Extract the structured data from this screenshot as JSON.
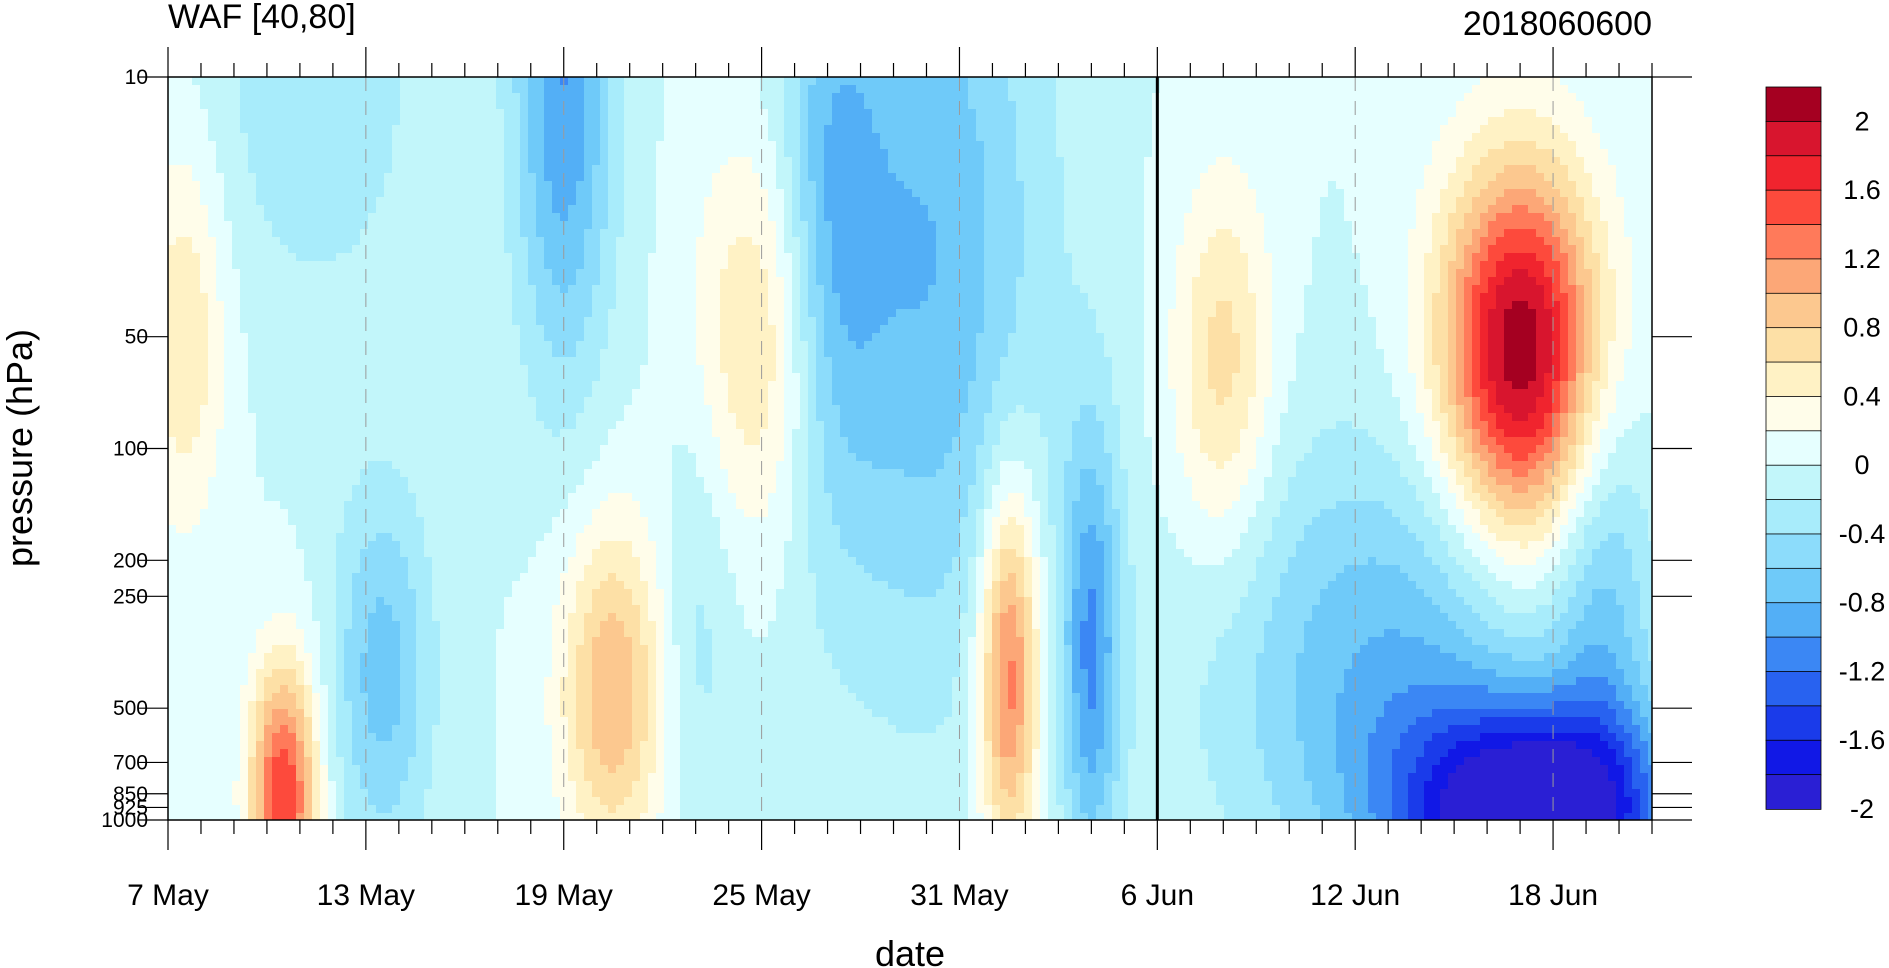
{
  "chart_data": {
    "type": "heatmap",
    "title": "WAF [40,80]",
    "subtitle": "2018060600",
    "xlabel": "date",
    "ylabel": "pressure (hPa)",
    "x_ticks": [
      "7 May",
      "13 May",
      "19 May",
      "25 May",
      "31 May",
      "6 Jun",
      "12 Jun",
      "18 Jun"
    ],
    "y_ticks": [
      "10",
      "50",
      "100",
      "200",
      "250",
      "500",
      "700",
      "850",
      "925",
      "1000"
    ],
    "y_tick_values": [
      10,
      50,
      100,
      200,
      250,
      500,
      700,
      850,
      925,
      1000
    ],
    "y_scale": "log",
    "marker_date": "6 Jun",
    "colorbar": {
      "labels": [
        "2",
        "1.6",
        "1.2",
        "0.8",
        "0.4",
        "0",
        "-0.4",
        "-0.8",
        "-1.2",
        "-1.6",
        "-2"
      ],
      "levels": [
        2.2,
        2.0,
        1.8,
        1.6,
        1.4,
        1.2,
        1.0,
        0.8,
        0.6,
        0.4,
        0.2,
        0.0,
        -0.2,
        -0.4,
        -0.6,
        -0.8,
        -1.0,
        -1.2,
        -1.4,
        -1.6,
        -1.8,
        -2.0,
        -2.2
      ],
      "colors": [
        "#a50021",
        "#d8152e",
        "#f0242e",
        "#fd4a3c",
        "#ff7a5a",
        "#fca777",
        "#fcc88f",
        "#fde0a6",
        "#fff2c5",
        "#fffdea",
        "#e6ffff",
        "#c2f6fa",
        "#a8ecfb",
        "#8cdcfb",
        "#6fcaf9",
        "#53aff6",
        "#3b87f4",
        "#2862f0",
        "#1a3bea",
        "#1118e6",
        "#2a1fd4"
      ]
    },
    "features": [
      {
        "day": 3.5,
        "p": 850,
        "value": 1.6,
        "sx": 1.0,
        "sy": 0.35
      },
      {
        "day": 0.5,
        "p": 50,
        "value": 0.6,
        "sx": 1.2,
        "sy": 0.5
      },
      {
        "day": 4.5,
        "p": 10,
        "value": -0.4,
        "sx": 3.0,
        "sy": 0.6
      },
      {
        "day": 6.5,
        "p": 400,
        "value": -0.7,
        "sx": 1.5,
        "sy": 0.5
      },
      {
        "day": 12.0,
        "p": 10,
        "value": -1.0,
        "sx": 1.5,
        "sy": 0.8
      },
      {
        "day": 13.5,
        "p": 450,
        "value": 1.0,
        "sx": 1.6,
        "sy": 0.45
      },
      {
        "day": 18.0,
        "p": 50,
        "value": 0.7,
        "sx": 2.0,
        "sy": 0.55
      },
      {
        "day": 20.0,
        "p": 25,
        "value": -0.6,
        "sx": 1.5,
        "sy": 0.8
      },
      {
        "day": 25.5,
        "p": 400,
        "value": 1.4,
        "sx": 0.9,
        "sy": 0.5
      },
      {
        "day": 23.0,
        "p": 30,
        "value": -0.8,
        "sx": 3.5,
        "sy": 1.1
      },
      {
        "day": 28.0,
        "p": 350,
        "value": -1.0,
        "sx": 0.9,
        "sy": 0.6
      },
      {
        "day": 32.0,
        "p": 60,
        "value": 0.7,
        "sx": 1.5,
        "sy": 0.5
      },
      {
        "day": 41.0,
        "p": 55,
        "value": 2.2,
        "sx": 2.4,
        "sy": 0.5
      },
      {
        "day": 41.5,
        "p": 980,
        "value": -2.2,
        "sx": 4.0,
        "sy": 0.3
      },
      {
        "day": 37.0,
        "p": 400,
        "value": -0.8,
        "sx": 5.0,
        "sy": 0.6
      },
      {
        "day": 16.0,
        "p": 300,
        "value": -0.3,
        "sx": 1.2,
        "sy": 0.6
      },
      {
        "day": 43.5,
        "p": 250,
        "value": -0.6,
        "sx": 1.5,
        "sy": 0.6
      }
    ]
  }
}
